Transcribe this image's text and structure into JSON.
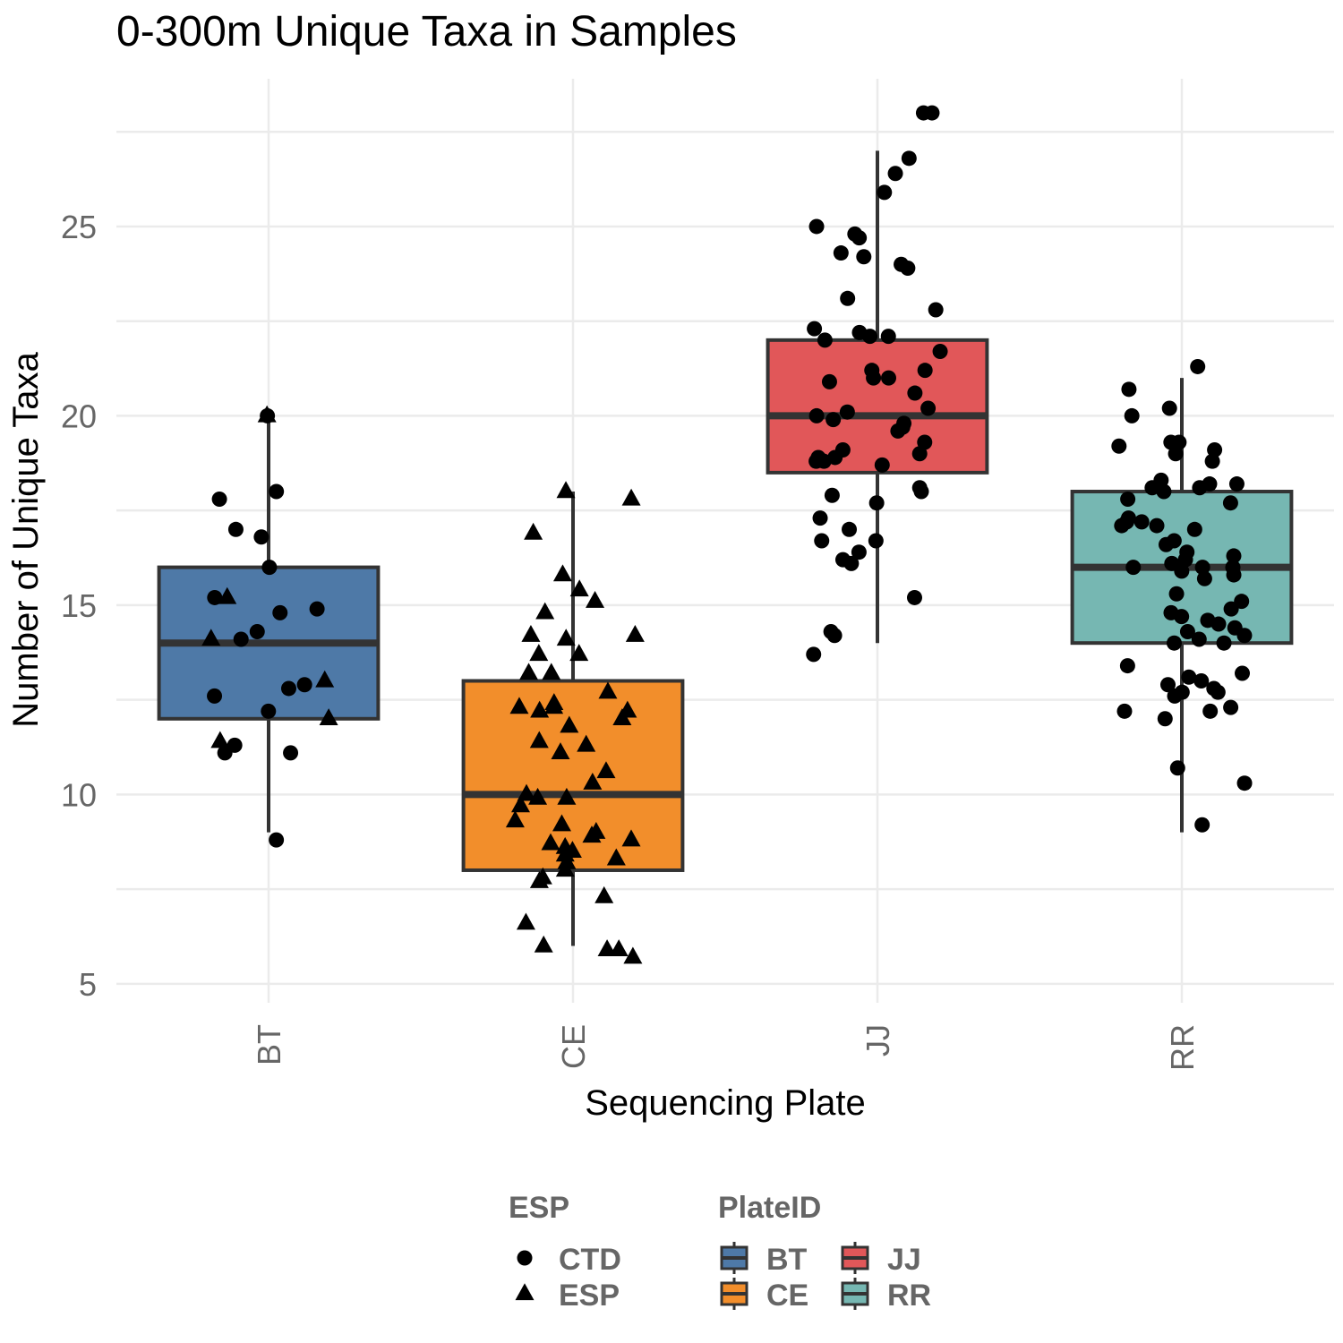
{
  "chart_data": {
    "type": "box",
    "title": "0-300m Unique Taxa in Samples",
    "xlabel": "Sequencing Plate",
    "ylabel": "Number of Unique Taxa",
    "categories": [
      "BT",
      "CE",
      "JJ",
      "RR"
    ],
    "ylim": [
      4.5,
      28.9
    ],
    "yticks": [
      5,
      10,
      15,
      20,
      25
    ],
    "grid": true,
    "colors": {
      "BT": "#4e79a7",
      "CE": "#f28e2b",
      "JJ": "#e15759",
      "RR": "#76b7b2"
    },
    "boxes": [
      {
        "category": "BT",
        "whisker_low": 9,
        "q1": 12,
        "median": 14,
        "q3": 16,
        "whisker_high": 20
      },
      {
        "category": "CE",
        "whisker_low": 6,
        "q1": 8,
        "median": 10,
        "q3": 13,
        "whisker_high": 18
      },
      {
        "category": "JJ",
        "whisker_low": 14,
        "q1": 18.5,
        "median": 20,
        "q3": 22,
        "whisker_high": 27
      },
      {
        "category": "RR",
        "whisker_low": 9,
        "q1": 14,
        "median": 16,
        "q3": 18,
        "whisker_high": 21
      }
    ],
    "points": [
      {
        "category": "BT",
        "shape": "circle",
        "values": [
          20,
          18,
          17.8,
          17,
          16.8,
          16,
          15.2,
          14.9,
          14.8,
          14.3,
          14.1,
          12.9,
          12.8,
          12.6,
          12.2,
          11.3,
          11.1,
          11.1,
          8.8
        ]
      },
      {
        "category": "BT",
        "shape": "triangle",
        "values": [
          20,
          15.2,
          14.1,
          13,
          12,
          11.4
        ]
      },
      {
        "category": "CE",
        "shape": "triangle",
        "values": [
          18,
          17.8,
          16.9,
          15.8,
          15.4,
          15.1,
          14.8,
          14.2,
          14.2,
          14.1,
          13.7,
          13.7,
          13.2,
          13.2,
          12.7,
          12.4,
          12.3,
          12.3,
          12.2,
          12.2,
          12,
          11.8,
          11.4,
          11.3,
          11.1,
          10.6,
          10.3,
          10,
          9.9,
          9.9,
          9.7,
          9.3,
          9.2,
          9,
          8.9,
          8.8,
          8.7,
          8.6,
          8.5,
          8.4,
          8.3,
          8.2,
          8,
          7.8,
          7.7,
          7.3,
          6.6,
          6,
          5.9,
          5.9,
          5.7
        ]
      },
      {
        "category": "JJ",
        "shape": "circle",
        "values": [
          28,
          28,
          26.8,
          26.4,
          25.9,
          25,
          24.8,
          24.7,
          24.3,
          24.2,
          24,
          23.9,
          23.1,
          22.8,
          22.3,
          22.2,
          22.1,
          22.1,
          22,
          21.7,
          21.2,
          21.2,
          21,
          21,
          20.9,
          20.6,
          20.2,
          20.1,
          20,
          19.9,
          19.8,
          19.7,
          19.6,
          19.3,
          19.1,
          19,
          18.9,
          18.9,
          18.8,
          18.8,
          18.7,
          18.1,
          18,
          17.9,
          17.7,
          17.3,
          17,
          16.7,
          16.7,
          16.4,
          16.2,
          16.1,
          15.2,
          14.3,
          14.2,
          13.7
        ]
      },
      {
        "category": "RR",
        "shape": "circle",
        "values": [
          21.3,
          20.7,
          20.2,
          20,
          19.3,
          19.3,
          19.2,
          19.1,
          19,
          18.8,
          18.3,
          18.2,
          18.2,
          18.1,
          18.1,
          18,
          17.8,
          17.7,
          17.3,
          17.2,
          17.2,
          17.1,
          17.1,
          17,
          16.7,
          16.6,
          16.4,
          16.3,
          16.2,
          16.1,
          16,
          16,
          16,
          15.9,
          15.8,
          15.7,
          15.3,
          15.1,
          14.9,
          14.8,
          14.7,
          14.6,
          14.5,
          14.4,
          14.3,
          14.2,
          14.1,
          14,
          14,
          13.4,
          13.2,
          13.1,
          13,
          12.9,
          12.8,
          12.7,
          12.7,
          12.6,
          12.3,
          12.2,
          12.2,
          12,
          10.7,
          10.3,
          9.2
        ]
      }
    ],
    "legend": {
      "position": "bottom",
      "shape_title": "ESP",
      "shape_entries": [
        {
          "label": "CTD",
          "shape": "circle"
        },
        {
          "label": "ESP",
          "shape": "triangle"
        }
      ],
      "fill_title": "PlateID",
      "fill_entries": [
        {
          "label": "BT",
          "color": "#4e79a7"
        },
        {
          "label": "CE",
          "color": "#f28e2b"
        },
        {
          "label": "JJ",
          "color": "#e15759"
        },
        {
          "label": "RR",
          "color": "#76b7b2"
        }
      ]
    }
  }
}
